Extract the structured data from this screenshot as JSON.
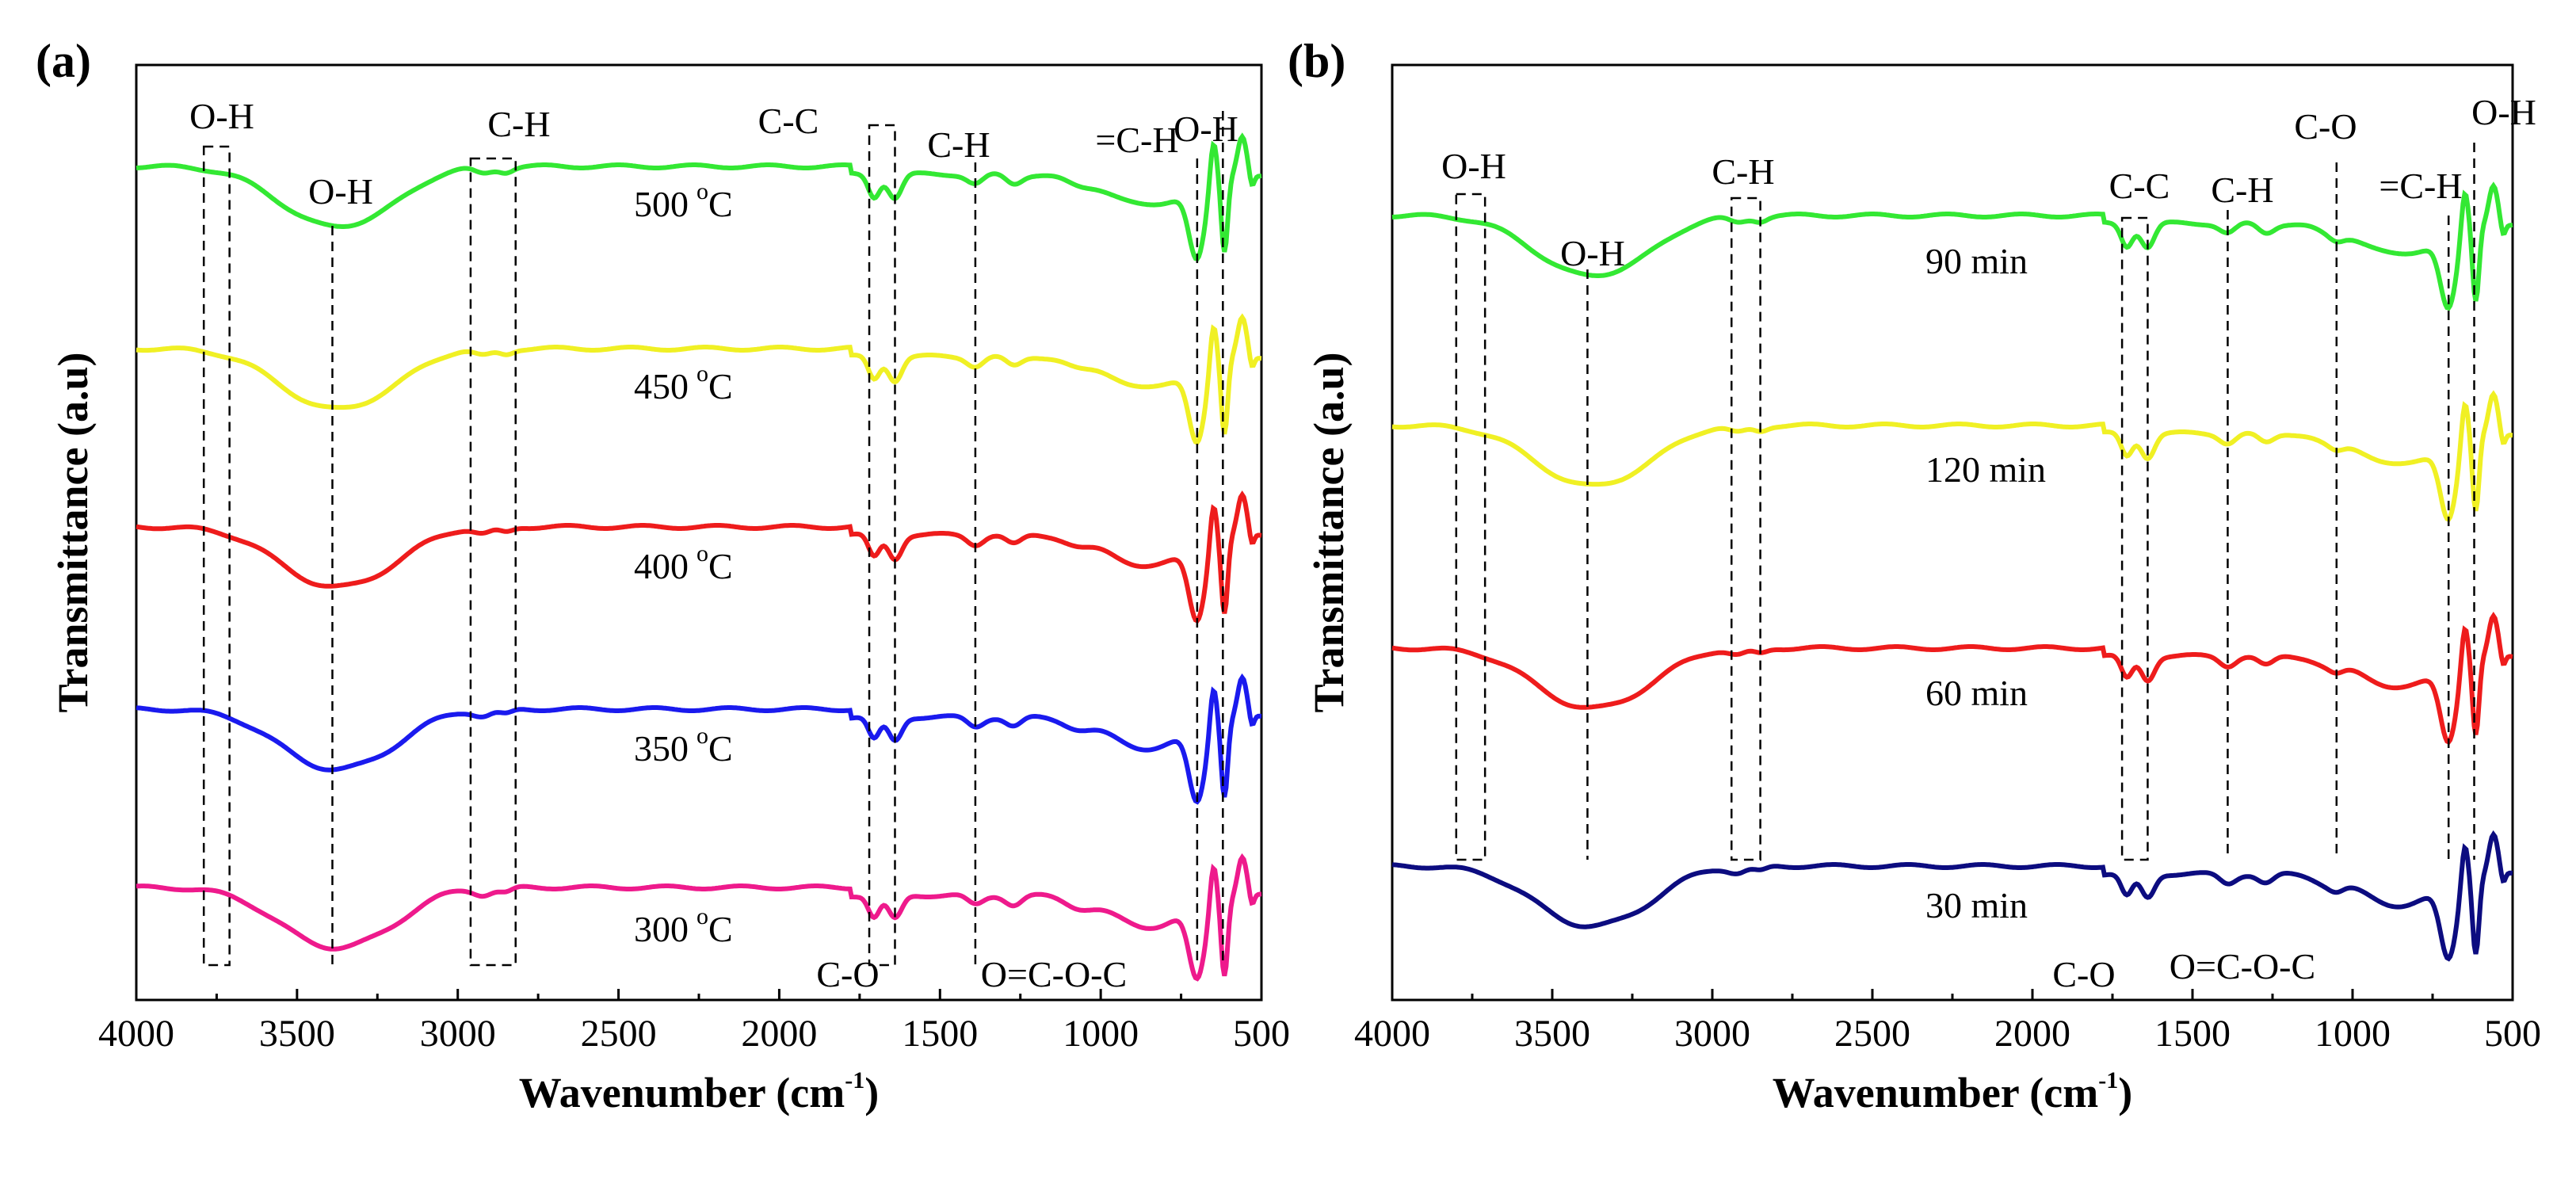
{
  "chart_data": [
    {
      "type": "line",
      "panel_label": "(a)",
      "xlabel": "Wavenumber (cm",
      "xlabel_sup": "-1",
      "xlabel_end": ")",
      "ylabel": "Transmittance (a.u)",
      "xlim": [
        4000,
        500
      ],
      "xticks": [
        "4000",
        "3500",
        "3000",
        "2500",
        "2000",
        "1500",
        "1000",
        "500"
      ],
      "series": [
        {
          "name": "500 °C",
          "label": "500",
          "label_sup": "o",
          "label_unit": "C",
          "color": "#33e833"
        },
        {
          "name": "450 °C",
          "label": "450",
          "label_sup": "o",
          "label_unit": "C",
          "color": "#f0f024"
        },
        {
          "name": "400 °C",
          "label": "400",
          "label_sup": "o",
          "label_unit": "C",
          "color": "#ee1c1c"
        },
        {
          "name": "350 °C",
          "label": "350",
          "label_sup": "o",
          "label_unit": "C",
          "color": "#1a1aee"
        },
        {
          "name": "300 °C",
          "label": "300",
          "label_sup": "o",
          "label_unit": "C",
          "color": "#ee1a8c"
        }
      ],
      "peak_annotations": [
        {
          "label": "O-H",
          "x": [
            3790,
            3710
          ]
        },
        {
          "label": "O-H",
          "x": [
            3390
          ]
        },
        {
          "label": "C-H",
          "x": [
            2960,
            2820
          ]
        },
        {
          "label": "C-C",
          "x": [
            1720,
            1640
          ]
        },
        {
          "label": "C-H",
          "x": [
            1390
          ]
        },
        {
          "label": "=C-H",
          "x": [
            700
          ]
        },
        {
          "label": "O-H",
          "x": [
            620
          ]
        },
        {
          "label": "C-O",
          "x": [
            1720
          ]
        },
        {
          "label": "O=C-O-C",
          "x": [
            1270
          ]
        }
      ]
    },
    {
      "type": "line",
      "panel_label": "(b)",
      "xlabel": "Wavenumber (cm",
      "xlabel_sup": "-1",
      "xlabel_end": ")",
      "ylabel": "Transmittance (a.u)",
      "xlim": [
        4000,
        500
      ],
      "xticks": [
        "4000",
        "3500",
        "3000",
        "2500",
        "2000",
        "1500",
        "1000",
        "500"
      ],
      "series": [
        {
          "name": "90 min",
          "label": "90 min",
          "color": "#33e833"
        },
        {
          "name": "120 min",
          "label": "120 min",
          "color": "#f0f024"
        },
        {
          "name": "60 min",
          "label": "60 min",
          "color": "#ee1c1c"
        },
        {
          "name": "30 min",
          "label": "30 min",
          "color": "#0c0c80"
        }
      ],
      "peak_annotations": [
        {
          "label": "O-H",
          "x": [
            3800,
            3710
          ]
        },
        {
          "label": "O-H",
          "x": [
            3390
          ]
        },
        {
          "label": "C-H",
          "x": [
            2940,
            2850
          ]
        },
        {
          "label": "C-C",
          "x": [
            1720,
            1640
          ]
        },
        {
          "label": "C-H",
          "x": [
            1390
          ]
        },
        {
          "label": "C-O",
          "x": [
            1050
          ]
        },
        {
          "label": "=C-H",
          "x": [
            700
          ]
        },
        {
          "label": "O-H",
          "x": [
            620
          ]
        },
        {
          "label": "C-O",
          "x": [
            1720
          ]
        },
        {
          "label": "O=C-O-C",
          "x": [
            1280
          ]
        }
      ]
    }
  ]
}
